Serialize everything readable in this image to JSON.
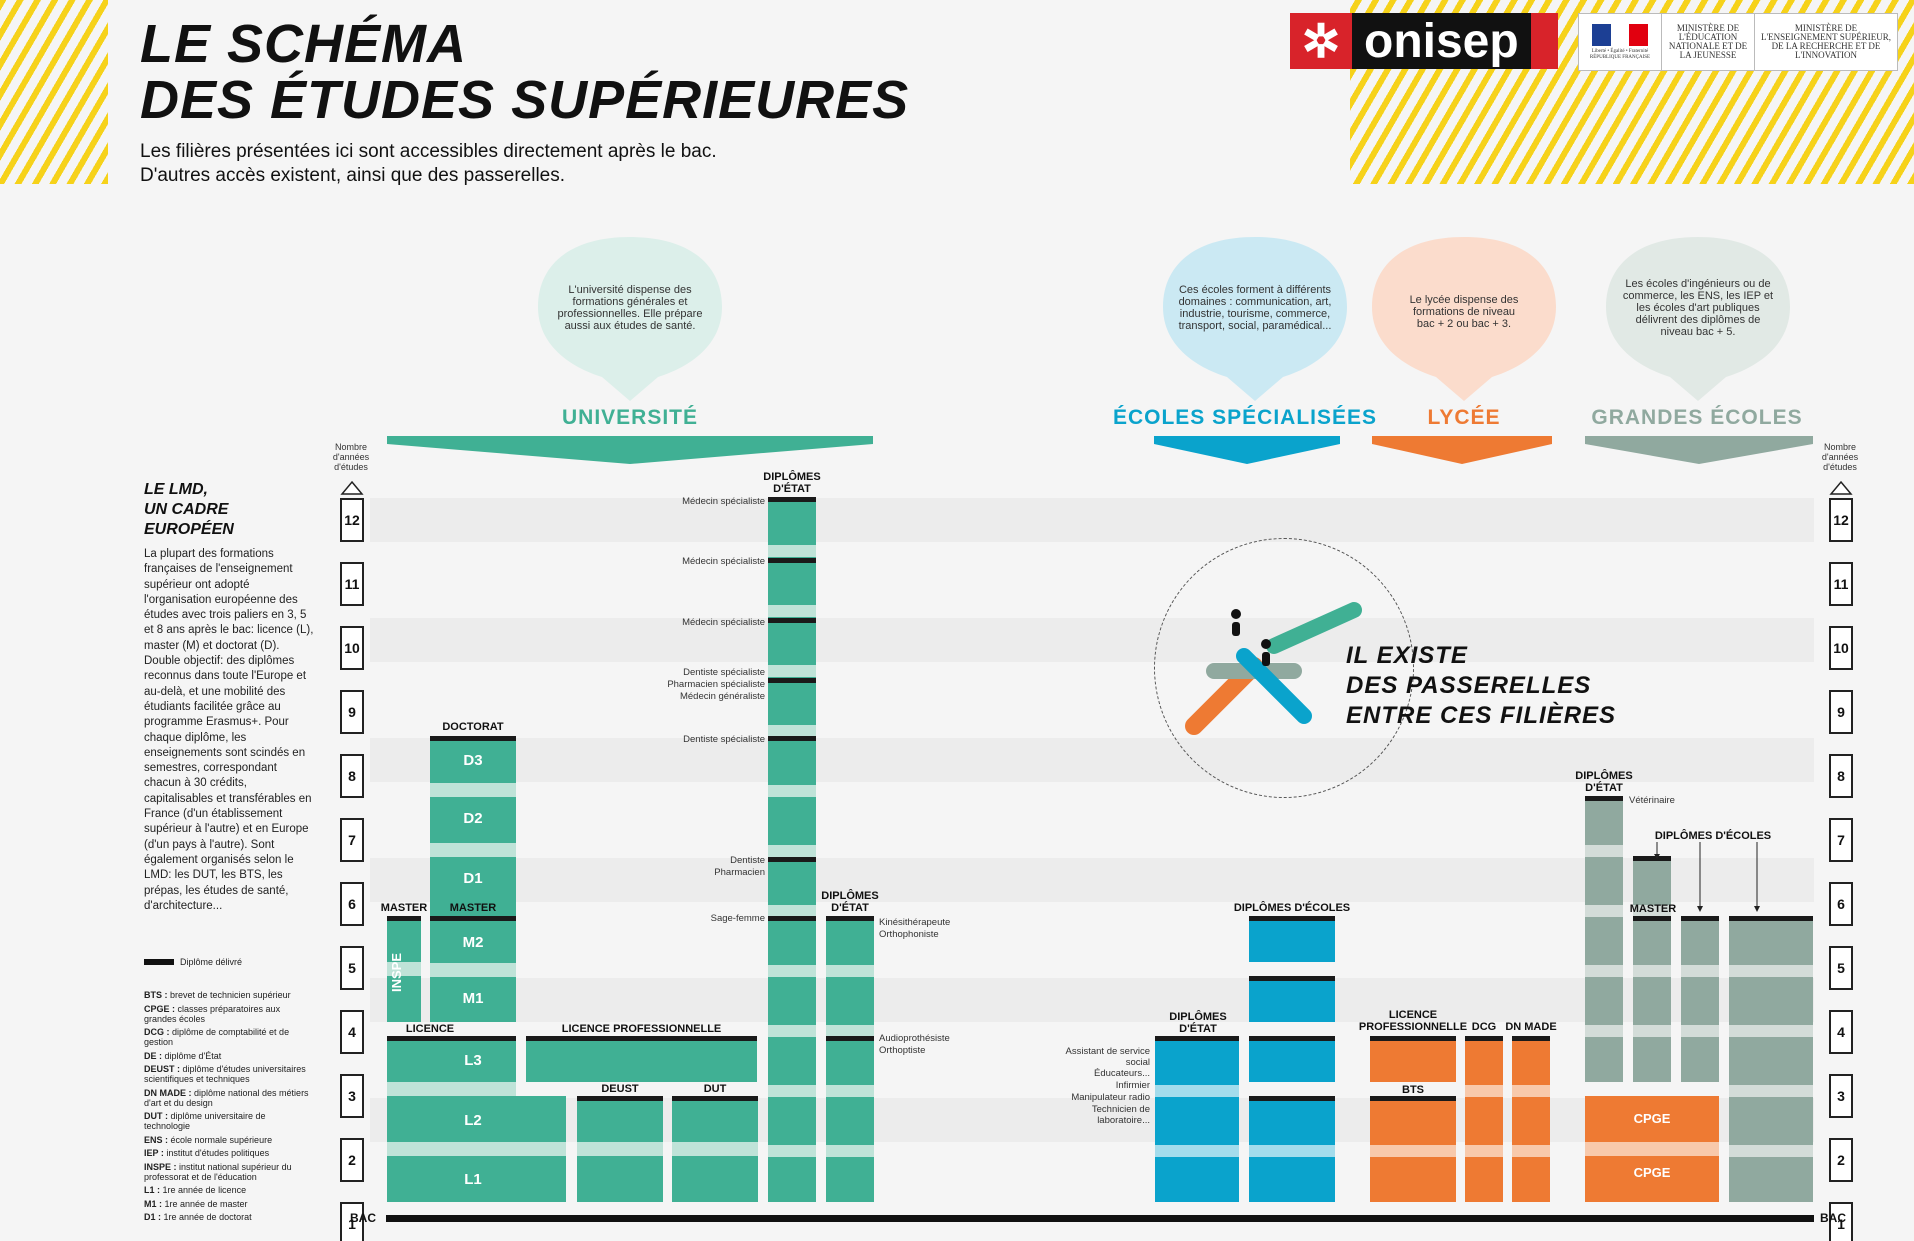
{
  "header": {
    "title_line1": "LE SCHÉMA",
    "title_line2": "DES ÉTUDES SUPÉRIEURES",
    "subtitle_line1": "Les filières présentées ici sont accessibles directement après le bac.",
    "subtitle_line2": "D'autres accès existent, ainsi que des passerelles.",
    "logo": "onisep",
    "marianne_text": "Liberté • Égalité • Fraternité RÉPUBLIQUE FRANÇAISE",
    "ministry1": "MINISTÈRE DE L'ÉDUCATION NATIONALE ET DE LA JEUNESSE",
    "ministry2": "MINISTÈRE DE L'ENSEIGNEMENT SUPÉRIEUR, DE LA RECHERCHE ET DE L'INNOVATION"
  },
  "colors": {
    "universite": "#40b094",
    "ecoles_specialisees": "#0aa3cc",
    "lycee": "#ee7a33",
    "grandes_ecoles": "#90a99f",
    "stripes": "#f6d21a",
    "onisep_red": "#d8232a"
  },
  "bubbles": {
    "universite": "L'université dispense des formations générales et professionnelles. Elle prépare aussi aux études de santé.",
    "ecoles": "Ces écoles forment à différents domaines : communication, art, industrie, tourisme, commerce, transport, social, paramédical...",
    "lycee": "Le lycée dispense des formations de niveau bac + 2 ou bac + 3.",
    "grandes_ecoles": "Les écoles d'ingénieurs ou de commerce, les ENS, les IEP et les écoles d'art publiques délivrent des diplômes de niveau bac + 5."
  },
  "categories": {
    "universite": "UNIVERSITÉ",
    "ecoles": "ÉCOLES SPÉCIALISÉES",
    "lycee": "LYCÉE",
    "grandes_ecoles": "GRANDES ÉCOLES"
  },
  "axis": {
    "label": "Nombre d'années d'études",
    "years": [
      "12",
      "11",
      "10",
      "9",
      "8",
      "7",
      "6",
      "5",
      "4",
      "3",
      "2",
      "1"
    ],
    "bac": "BAC"
  },
  "sidebar": {
    "title1": "LE LMD,",
    "title2": "UN CADRE",
    "title3": "EUROPÉEN",
    "text": "La plupart des formations françaises de l'enseignement supérieur ont adopté l'organisation européenne des études avec trois paliers en 3, 5 et 8 ans après le bac: licence (L), master (M) et doctorat (D). Double objectif: des diplômes reconnus dans toute l'Europe et au-delà, et une mobilité des étudiants facilitée grâce au programme Erasmus+. Pour chaque diplôme, les enseignements sont scindés en semestres, correspondant chacun à 30 crédits, capitalisables et transférables en France (d'un établissement supérieur à l'autre) et en Europe (d'un pays à l'autre). Sont également organisés selon le LMD: les DUT, les BTS, les prépas, les études de santé, d'architecture...",
    "legend_diplome": "Diplôme délivré",
    "glossary": [
      {
        "abbr": "BTS :",
        "def": "brevet de technicien supérieur"
      },
      {
        "abbr": "CPGE :",
        "def": "classes préparatoires aux grandes écoles"
      },
      {
        "abbr": "DCG :",
        "def": "diplôme de comptabilité et de gestion"
      },
      {
        "abbr": "DE :",
        "def": "diplôme d'État"
      },
      {
        "abbr": "DEUST :",
        "def": "diplôme d'études universitaires scientifiques et techniques"
      },
      {
        "abbr": "DN MADE :",
        "def": "diplôme national des métiers d'art et du design"
      },
      {
        "abbr": "DUT :",
        "def": "diplôme universitaire de technologie"
      },
      {
        "abbr": "ENS :",
        "def": "école normale supérieure"
      },
      {
        "abbr": "IEP :",
        "def": "institut d'études politiques"
      },
      {
        "abbr": "INSPE :",
        "def": "institut national supérieur du professorat et de l'éducation"
      },
      {
        "abbr": "L1 :",
        "def": "1re année de licence"
      },
      {
        "abbr": "M1 :",
        "def": "1re année de master"
      },
      {
        "abbr": "D1 :",
        "def": "1re année de doctorat"
      }
    ]
  },
  "labels": {
    "doctorat": "DOCTORAT",
    "master": "MASTER",
    "licence": "LICENCE",
    "licence_pro": "LICENCE PROFESSIONNELLE",
    "deust": "DEUST",
    "dut": "DUT",
    "diplomes_etat": "DIPLÔMES D'ÉTAT",
    "diplomes_ecoles": "DIPLÔMES D'ÉCOLES",
    "licence_pro_lycee": "LICENCE PROFESSIONNELLE",
    "dcg": "DCG",
    "dn_made": "DN MADE",
    "bts": "BTS",
    "cpge": "CPGE",
    "inspe": "INSPE",
    "d3": "D3",
    "d2": "D2",
    "d1": "D1",
    "m2": "M2",
    "m1": "M1",
    "l3": "L3",
    "l2": "L2",
    "l1": "L1"
  },
  "notes": {
    "med_spe": "Médecin spécialiste",
    "dent_spe": "Dentiste spécialiste",
    "pharm_spe": "Pharmacien spécialiste",
    "med_gen": "Médecin généraliste",
    "dentiste": "Dentiste",
    "pharmacien": "Pharmacien",
    "sage_femme": "Sage-femme",
    "kine": "Kinésithérapeute",
    "ortho": "Orthophoniste",
    "audio": "Audioprothésiste",
    "orthoptiste": "Orthoptiste",
    "assistant": "Assistant de service social",
    "educateurs": "Éducateurs...",
    "infirmier": "Infirmier",
    "manip": "Manipulateur radio",
    "technicien": "Technicien de laboratoire...",
    "veterinaire": "Vétérinaire"
  },
  "passerelles": {
    "line1": "IL EXISTE",
    "line2": "DES PASSERELLES",
    "line3": "ENTRE CES FILIÈRES"
  }
}
